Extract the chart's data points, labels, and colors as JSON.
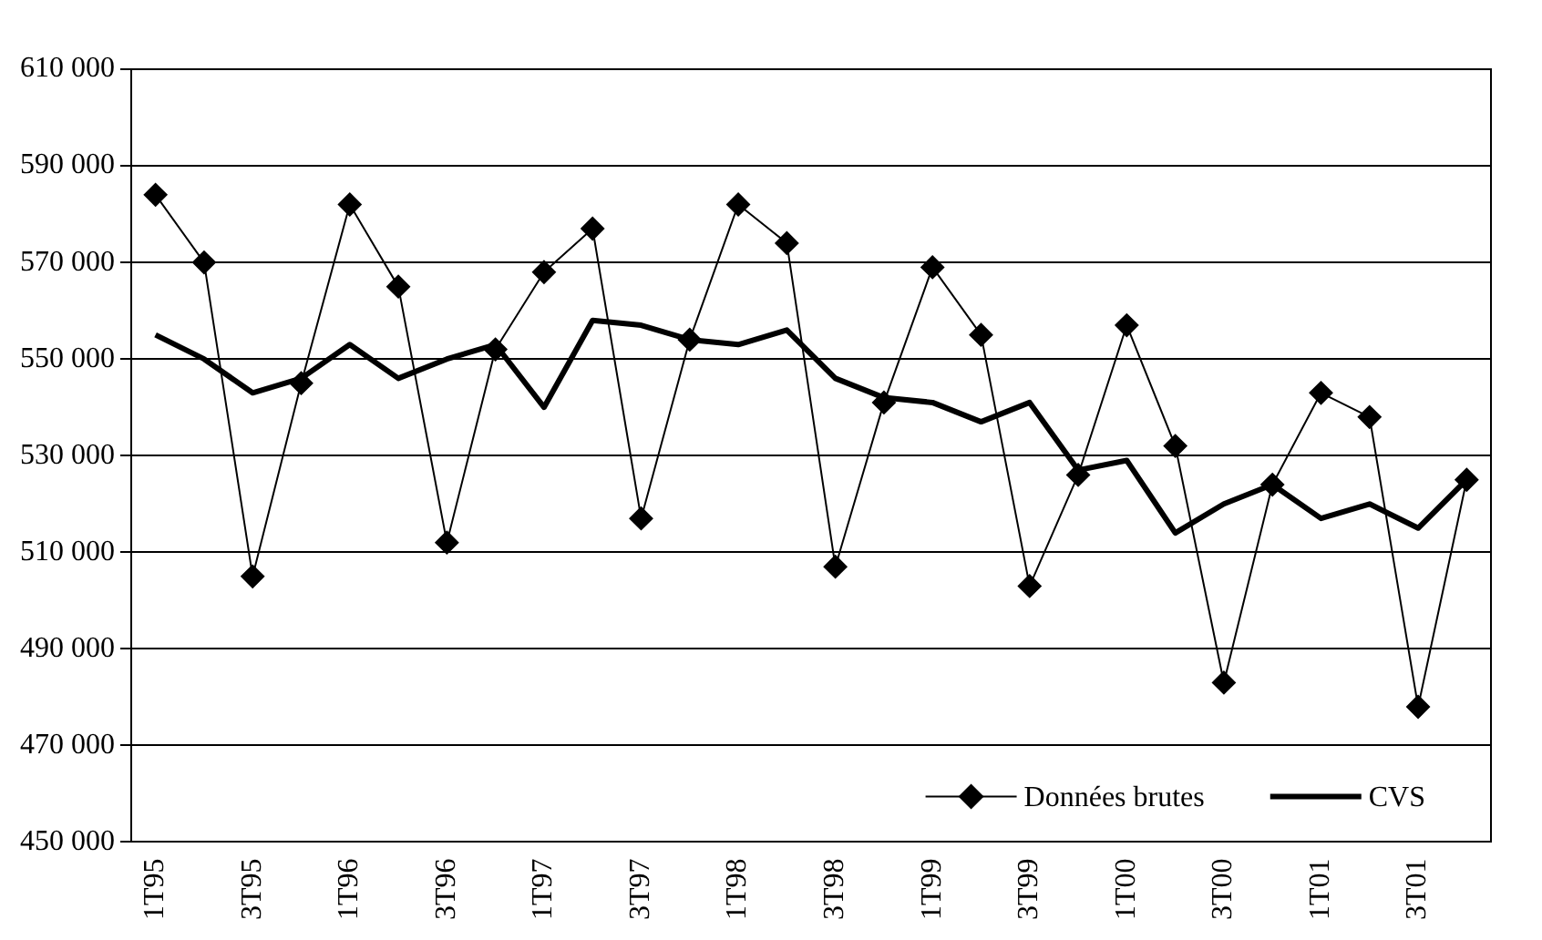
{
  "chart_data": {
    "type": "line",
    "categories": [
      "1T95",
      null,
      "3T95",
      null,
      "1T96",
      null,
      "3T96",
      null,
      "1T97",
      null,
      "3T97",
      null,
      "1T98",
      null,
      "3T98",
      null,
      "1T99",
      null,
      "3T99",
      null,
      "1T00",
      null,
      "3T00",
      null,
      "1T01",
      null,
      "3T01",
      null
    ],
    "series": [
      {
        "name": "Données brutes",
        "color": "#000000",
        "marker": "diamond",
        "values": [
          584000,
          570000,
          505000,
          545000,
          582000,
          565000,
          512000,
          552000,
          568000,
          577000,
          517000,
          554000,
          582000,
          574000,
          507000,
          541000,
          569000,
          555000,
          503000,
          526000,
          557000,
          532000,
          483000,
          524000,
          543000,
          538000,
          478000,
          525000
        ]
      },
      {
        "name": "CVS",
        "color": "#000000",
        "marker": "none",
        "values": [
          555000,
          550000,
          543000,
          546000,
          553000,
          546000,
          550000,
          553000,
          540000,
          558000,
          557000,
          554000,
          553000,
          556000,
          546000,
          542000,
          541000,
          537000,
          541000,
          527000,
          529000,
          514000,
          520000,
          524000,
          517000,
          520000,
          515000,
          525000
        ]
      }
    ],
    "ylim": [
      450000,
      610000
    ],
    "yticks": [
      {
        "value": 450000,
        "label": "450 000"
      },
      {
        "value": 470000,
        "label": "470 000"
      },
      {
        "value": 490000,
        "label": "490 000"
      },
      {
        "value": 510000,
        "label": "510 000"
      },
      {
        "value": 530000,
        "label": "530 000"
      },
      {
        "value": 550000,
        "label": "550 000"
      },
      {
        "value": 570000,
        "label": "570 000"
      },
      {
        "value": 590000,
        "label": "590 000"
      },
      {
        "value": 610000,
        "label": "610 000"
      }
    ],
    "grid": "y",
    "legend": "bottom right"
  }
}
